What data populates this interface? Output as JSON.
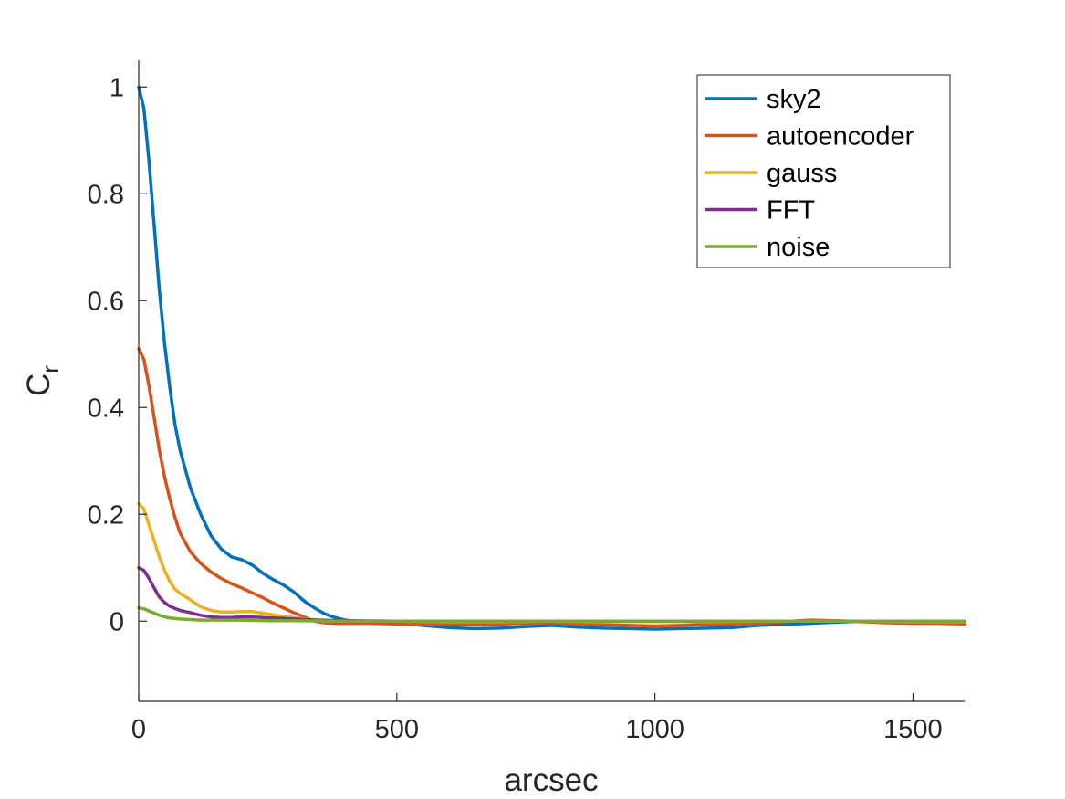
{
  "chart_data": {
    "type": "line",
    "title": "",
    "xlabel": "arcsec",
    "ylabel": "C",
    "ylabel_subscript": "r",
    "xlim": [
      0,
      1600
    ],
    "ylim": [
      -0.15,
      1.05
    ],
    "xticks": [
      0,
      500,
      1000,
      1500
    ],
    "xtick_labels": [
      "0",
      "500",
      "1000",
      "1500"
    ],
    "yticks": [
      0,
      0.2,
      0.4,
      0.6,
      0.8,
      1
    ],
    "ytick_labels": [
      "0",
      "0.2",
      "0.4",
      "0.6",
      "0.8",
      "1"
    ],
    "grid": false,
    "legend_position": "top-right",
    "series": [
      {
        "name": "sky2",
        "color": "#0072BD",
        "x": [
          0,
          10,
          20,
          30,
          40,
          50,
          60,
          70,
          80,
          100,
          120,
          140,
          160,
          180,
          200,
          220,
          240,
          260,
          280,
          300,
          320,
          340,
          360,
          380,
          400,
          420,
          450,
          500,
          550,
          600,
          650,
          700,
          750,
          800,
          850,
          900,
          950,
          1000,
          1050,
          1100,
          1150,
          1200,
          1250,
          1300,
          1350,
          1400,
          1450,
          1500,
          1550,
          1600
        ],
        "y": [
          1.0,
          0.96,
          0.86,
          0.74,
          0.62,
          0.52,
          0.44,
          0.37,
          0.32,
          0.25,
          0.2,
          0.16,
          0.135,
          0.12,
          0.115,
          0.105,
          0.09,
          0.078,
          0.068,
          0.055,
          0.038,
          0.025,
          0.014,
          0.007,
          0.002,
          0.0,
          -0.002,
          -0.004,
          -0.008,
          -0.012,
          -0.014,
          -0.013,
          -0.01,
          -0.008,
          -0.011,
          -0.013,
          -0.014,
          -0.015,
          -0.014,
          -0.013,
          -0.012,
          -0.008,
          -0.006,
          -0.004,
          -0.002,
          0.0,
          -0.001,
          -0.002,
          -0.002,
          -0.001
        ]
      },
      {
        "name": "autoencoder",
        "color": "#D95319",
        "x": [
          0,
          10,
          20,
          30,
          40,
          50,
          60,
          70,
          80,
          100,
          120,
          140,
          160,
          180,
          200,
          220,
          240,
          260,
          280,
          300,
          320,
          340,
          360,
          380,
          400,
          450,
          500,
          550,
          600,
          650,
          700,
          750,
          800,
          850,
          900,
          950,
          1000,
          1050,
          1100,
          1150,
          1200,
          1250,
          1300,
          1350,
          1400,
          1450,
          1500,
          1550,
          1600
        ],
        "y": [
          0.51,
          0.49,
          0.44,
          0.38,
          0.32,
          0.27,
          0.23,
          0.195,
          0.165,
          0.13,
          0.108,
          0.092,
          0.08,
          0.07,
          0.062,
          0.053,
          0.044,
          0.034,
          0.025,
          0.016,
          0.008,
          0.0,
          -0.003,
          -0.004,
          -0.004,
          -0.004,
          -0.005,
          -0.005,
          -0.006,
          -0.006,
          -0.005,
          -0.004,
          -0.003,
          -0.005,
          -0.007,
          -0.008,
          -0.009,
          -0.008,
          -0.006,
          -0.005,
          -0.004,
          -0.001,
          0.002,
          0.001,
          -0.001,
          -0.003,
          -0.004,
          -0.004,
          -0.005
        ]
      },
      {
        "name": "gauss",
        "color": "#EDB120",
        "x": [
          0,
          10,
          20,
          30,
          40,
          50,
          60,
          70,
          80,
          100,
          120,
          140,
          160,
          180,
          200,
          220,
          240,
          260,
          280,
          300,
          320,
          340,
          360,
          400,
          500,
          600,
          700,
          800,
          900,
          1000,
          1100,
          1200,
          1300,
          1400,
          1500,
          1600
        ],
        "y": [
          0.22,
          0.21,
          0.18,
          0.15,
          0.12,
          0.095,
          0.075,
          0.06,
          0.052,
          0.04,
          0.027,
          0.02,
          0.017,
          0.017,
          0.018,
          0.018,
          0.015,
          0.012,
          0.009,
          0.007,
          0.004,
          0.002,
          0.001,
          0.0,
          0.0,
          -0.001,
          -0.001,
          0.0,
          -0.001,
          -0.001,
          -0.001,
          0.0,
          0.0,
          0.0,
          -0.001,
          -0.001
        ]
      },
      {
        "name": "FFT",
        "color": "#7E2F8E",
        "x": [
          0,
          10,
          20,
          30,
          40,
          50,
          60,
          70,
          80,
          100,
          120,
          140,
          160,
          180,
          200,
          220,
          240,
          260,
          280,
          300,
          350,
          400,
          500,
          600,
          700,
          800,
          900,
          1000,
          1100,
          1200,
          1300,
          1400,
          1500,
          1600
        ],
        "y": [
          0.1,
          0.095,
          0.08,
          0.062,
          0.045,
          0.035,
          0.028,
          0.024,
          0.02,
          0.016,
          0.011,
          0.008,
          0.007,
          0.007,
          0.008,
          0.008,
          0.007,
          0.006,
          0.005,
          0.004,
          0.002,
          0.001,
          0.0,
          0.0,
          0.0,
          0.0,
          0.0,
          0.0,
          0.0,
          0.0,
          0.0,
          0.0,
          0.0,
          0.0
        ]
      },
      {
        "name": "noise",
        "color": "#77AC30",
        "x": [
          0,
          10,
          20,
          30,
          40,
          50,
          60,
          80,
          100,
          120,
          140,
          160,
          200,
          250,
          300,
          400,
          500,
          600,
          700,
          800,
          900,
          1000,
          1100,
          1200,
          1300,
          1400,
          1500,
          1600
        ],
        "y": [
          0.025,
          0.023,
          0.019,
          0.015,
          0.011,
          0.008,
          0.006,
          0.004,
          0.003,
          0.002,
          0.002,
          0.002,
          0.002,
          0.001,
          0.001,
          0.0,
          0.0,
          0.0,
          0.0,
          0.0,
          0.0,
          0.0,
          0.0,
          0.0,
          0.0,
          0.0,
          0.0,
          0.0
        ]
      }
    ]
  }
}
